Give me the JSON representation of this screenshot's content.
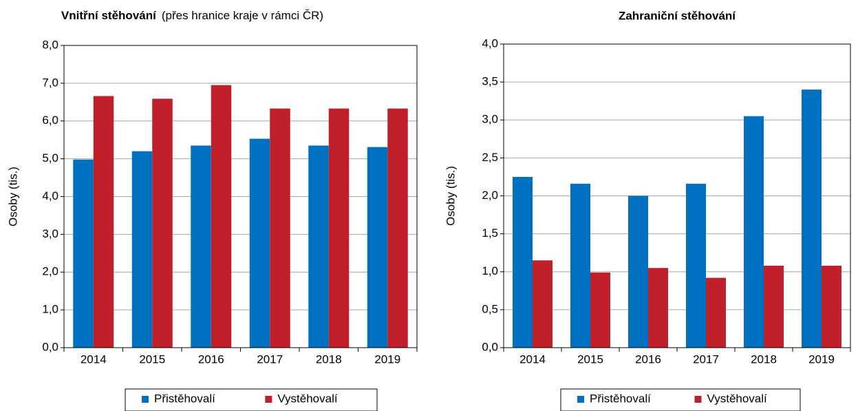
{
  "chart_data": [
    {
      "type": "bar",
      "title": "Vnitřní stěhování",
      "subtitle": "(přes hranice kraje v rámci ČR)",
      "y_label": "Osoby (tis.)",
      "categories": [
        "2014",
        "2015",
        "2016",
        "2017",
        "2018",
        "2019"
      ],
      "series": [
        {
          "name": "Přistěhovalí",
          "color": "#0070c0",
          "values": [
            4.98,
            5.2,
            5.35,
            5.53,
            5.35,
            5.31
          ]
        },
        {
          "name": "Vystěhovalí",
          "color": "#c0202a",
          "values": [
            6.66,
            6.59,
            6.95,
            6.33,
            6.33,
            6.33
          ]
        }
      ],
      "ylim": [
        0,
        8
      ],
      "yticks": [
        {
          "value": 0,
          "label": "0,0"
        },
        {
          "value": 1,
          "label": "1,0"
        },
        {
          "value": 2,
          "label": "2,0"
        },
        {
          "value": 3,
          "label": "3,0"
        },
        {
          "value": 4,
          "label": "4,0"
        },
        {
          "value": 5,
          "label": "5,0"
        },
        {
          "value": 6,
          "label": "6,0"
        },
        {
          "value": 7,
          "label": "7,0"
        },
        {
          "value": 8,
          "label": "8,0"
        }
      ],
      "grid": true,
      "legend": "bottom"
    },
    {
      "type": "bar",
      "title": "Zahraniční stěhování",
      "y_label": "Osoby (tis.)",
      "categories": [
        "2014",
        "2015",
        "2016",
        "2017",
        "2018",
        "2019"
      ],
      "series": [
        {
          "name": "Přistěhovalí",
          "color": "#0070c0",
          "values": [
            2.25,
            2.16,
            2.0,
            2.16,
            3.05,
            3.4
          ]
        },
        {
          "name": "Vystěhovalí",
          "color": "#c0202a",
          "values": [
            1.15,
            0.99,
            1.05,
            0.92,
            1.08,
            1.08
          ]
        }
      ],
      "ylim": [
        0,
        4
      ],
      "yticks": [
        {
          "value": 0,
          "label": "0,0"
        },
        {
          "value": 0.5,
          "label": "0,5"
        },
        {
          "value": 1,
          "label": "1,0"
        },
        {
          "value": 1.5,
          "label": "1,5"
        },
        {
          "value": 2,
          "label": "2,0"
        },
        {
          "value": 2.5,
          "label": "2,5"
        },
        {
          "value": 3,
          "label": "3,0"
        },
        {
          "value": 3.5,
          "label": "3,5"
        },
        {
          "value": 4,
          "label": "4,0"
        }
      ],
      "grid": true,
      "legend": "bottom"
    }
  ]
}
